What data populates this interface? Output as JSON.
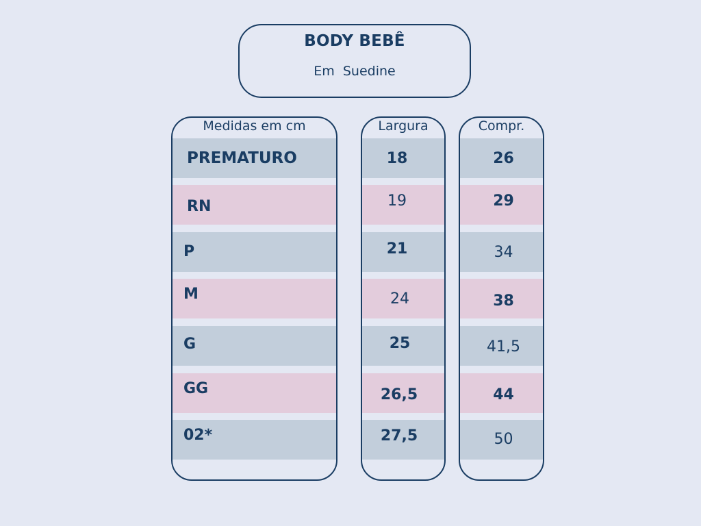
{
  "title": {
    "main": "BODY BEBÊ",
    "sub": "Em  Suedine"
  },
  "table": {
    "headers": {
      "sizes": "Medidas em cm",
      "width": "Largura",
      "length": "Compr."
    },
    "rows": [
      {
        "size": "PREMATURO",
        "width": "18",
        "length": "26",
        "shade": "blue"
      },
      {
        "size": "RN",
        "width": "19",
        "length": "29",
        "shade": "pink"
      },
      {
        "size": "P",
        "width": "21",
        "length": "34",
        "shade": "blue"
      },
      {
        "size": "M",
        "width": "24",
        "length": "38",
        "shade": "pink"
      },
      {
        "size": "G",
        "width": "25",
        "length": "41,5",
        "shade": "blue"
      },
      {
        "size": "GG",
        "width": "26,5",
        "length": "44",
        "shade": "pink"
      },
      {
        "size": "02*",
        "width": "27,5",
        "length": "50",
        "shade": "blue"
      }
    ]
  },
  "colors": {
    "background": "#e4e8f3",
    "text": "#1a3d63",
    "row_blue": "#c2cedb",
    "row_pink": "#e3ccdc"
  }
}
